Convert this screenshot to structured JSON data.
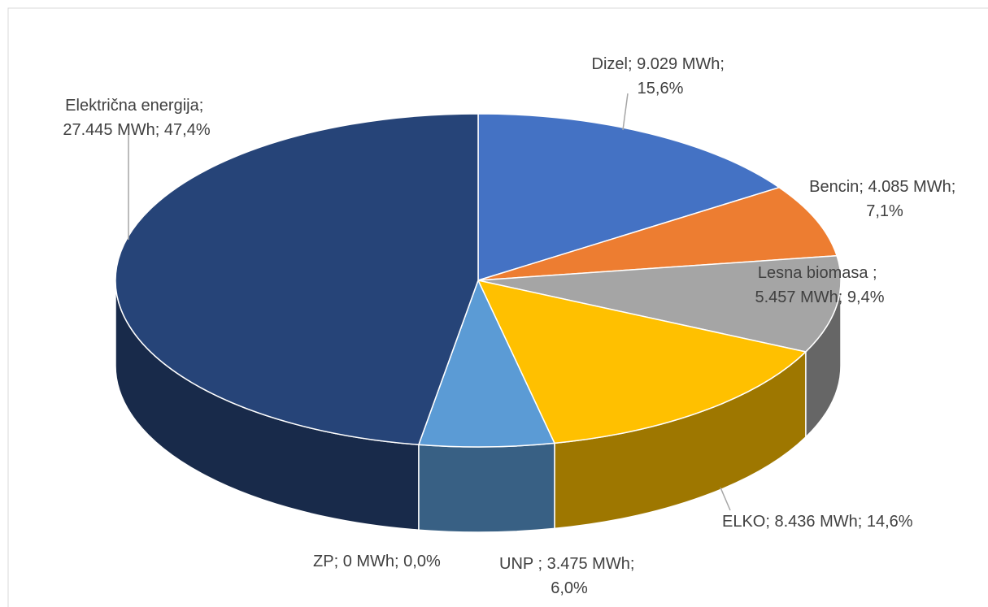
{
  "chart_data": {
    "type": "pie",
    "categories": [
      "Dizel",
      "Bencin",
      "Lesna biomasa ",
      "ELKO",
      "UNP ",
      "ZP",
      "Električna energija"
    ],
    "values": [
      9029,
      4085,
      5457,
      8436,
      3475,
      0,
      27445
    ],
    "value_labels": [
      "9.029 MWh",
      "4.085 MWh",
      "5.457 MWh",
      "8.436 MWh",
      "3.475 MWh",
      "0 MWh",
      "27.445 MWh"
    ],
    "percents": [
      15.6,
      7.1,
      9.4,
      14.6,
      6.0,
      0.0,
      47.4
    ],
    "percent_labels": [
      "15,6%",
      "7,1%",
      "9,4%",
      "14,6%",
      "6,0%",
      "0,0%",
      "47,4%"
    ],
    "label_separator": "; ",
    "colors": [
      "#4472c4",
      "#ed7d31",
      "#a5a5a5",
      "#ffc000",
      "#5b9bd5",
      "#70ad47",
      "#264478"
    ]
  }
}
